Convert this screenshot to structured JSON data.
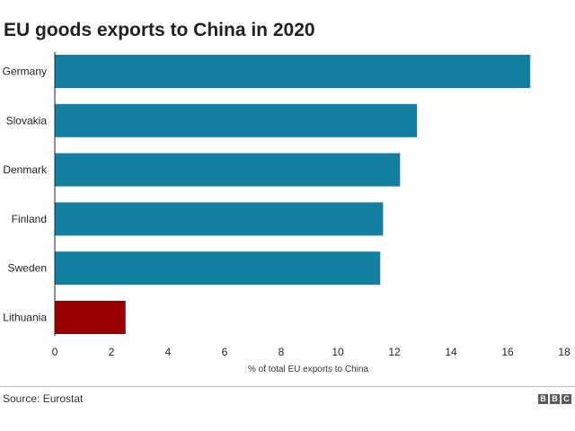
{
  "chart_data": {
    "type": "bar",
    "orientation": "horizontal",
    "title": "EU goods exports to China in 2020",
    "categories": [
      "Germany",
      "Slovakia",
      "Denmark",
      "Finland",
      "Sweden",
      "Lithuania"
    ],
    "values": [
      16.8,
      12.8,
      12.2,
      11.6,
      11.5,
      2.5
    ],
    "xlabel": "% of total EU exports to China",
    "ylabel": "",
    "xlim": [
      0,
      18
    ],
    "xticks": [
      "0",
      "2",
      "4",
      "6",
      "8",
      "10",
      "12",
      "14",
      "16",
      "18"
    ],
    "grid": false,
    "colors": {
      "default": "#1380a1",
      "highlight": "#990000",
      "axis": "#222222"
    },
    "highlight_category": "Lithuania"
  },
  "footer": {
    "source": "Source: Eurostat",
    "logo_letters": [
      "B",
      "B",
      "C"
    ]
  }
}
